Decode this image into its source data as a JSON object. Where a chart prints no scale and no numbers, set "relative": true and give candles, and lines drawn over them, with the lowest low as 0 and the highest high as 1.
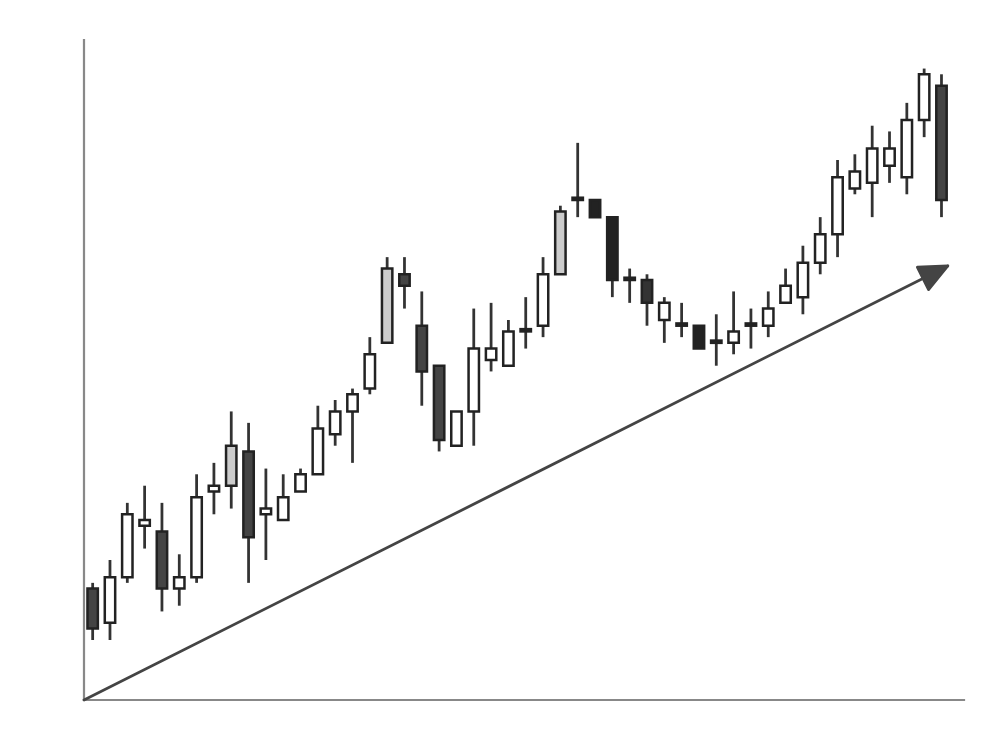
{
  "chart_data": {
    "type": "candlestick",
    "relative": true,
    "categories": [
      null,
      null,
      null,
      null,
      null,
      null,
      null,
      null,
      null,
      null,
      null,
      null,
      null,
      null,
      null,
      null,
      null,
      null,
      null,
      null,
      null,
      null,
      null,
      null,
      null,
      null,
      null,
      null,
      null,
      null,
      null,
      null,
      null,
      null,
      null,
      null,
      null,
      null,
      null,
      null,
      null,
      null,
      null,
      null,
      null,
      null,
      null,
      null,
      null,
      null
    ],
    "ohlc": [
      [
        0.09,
        0.1,
        0.0,
        0.02
      ],
      [
        0.03,
        0.14,
        0.0,
        0.11
      ],
      [
        0.11,
        0.24,
        0.1,
        0.22
      ],
      [
        0.2,
        0.27,
        0.16,
        0.21
      ],
      [
        0.19,
        0.24,
        0.05,
        0.09
      ],
      [
        0.09,
        0.15,
        0.06,
        0.11
      ],
      [
        0.11,
        0.29,
        0.1,
        0.25
      ],
      [
        0.26,
        0.31,
        0.22,
        0.27
      ],
      [
        0.27,
        0.4,
        0.23,
        0.34
      ],
      [
        0.33,
        0.38,
        0.1,
        0.18
      ],
      [
        0.22,
        0.3,
        0.14,
        0.23
      ],
      [
        0.21,
        0.29,
        0.21,
        0.25
      ],
      [
        0.26,
        0.3,
        0.26,
        0.29
      ],
      [
        0.29,
        0.41,
        0.29,
        0.37
      ],
      [
        0.36,
        0.42,
        0.34,
        0.4
      ],
      [
        0.4,
        0.44,
        0.31,
        0.43
      ],
      [
        0.44,
        0.53,
        0.43,
        0.5
      ],
      [
        0.52,
        0.67,
        0.52,
        0.65
      ],
      [
        0.64,
        0.67,
        0.58,
        0.62
      ],
      [
        0.55,
        0.61,
        0.41,
        0.47
      ],
      [
        0.48,
        0.48,
        0.33,
        0.35
      ],
      [
        0.34,
        0.4,
        0.34,
        0.4
      ],
      [
        0.4,
        0.58,
        0.34,
        0.51
      ],
      [
        0.49,
        0.59,
        0.47,
        0.51
      ],
      [
        0.48,
        0.56,
        0.48,
        0.54
      ],
      [
        0.54,
        0.6,
        0.51,
        0.54
      ],
      [
        0.55,
        0.67,
        0.53,
        0.64
      ],
      [
        0.64,
        0.76,
        0.64,
        0.75
      ],
      [
        0.77,
        0.87,
        0.74,
        0.77
      ],
      [
        0.77,
        0.77,
        0.74,
        0.74
      ],
      [
        0.74,
        0.74,
        0.6,
        0.63
      ],
      [
        0.63,
        0.65,
        0.59,
        0.63
      ],
      [
        0.63,
        0.64,
        0.55,
        0.59
      ],
      [
        0.56,
        0.6,
        0.52,
        0.59
      ],
      [
        0.55,
        0.59,
        0.53,
        0.55
      ],
      [
        0.55,
        0.55,
        0.51,
        0.51
      ],
      [
        0.52,
        0.57,
        0.48,
        0.52
      ],
      [
        0.52,
        0.61,
        0.5,
        0.54
      ],
      [
        0.55,
        0.58,
        0.51,
        0.55
      ],
      [
        0.55,
        0.61,
        0.53,
        0.58
      ],
      [
        0.59,
        0.65,
        0.59,
        0.62
      ],
      [
        0.6,
        0.69,
        0.57,
        0.66
      ],
      [
        0.66,
        0.74,
        0.64,
        0.71
      ],
      [
        0.71,
        0.84,
        0.67,
        0.81
      ],
      [
        0.79,
        0.85,
        0.78,
        0.82
      ],
      [
        0.8,
        0.9,
        0.74,
        0.86
      ],
      [
        0.83,
        0.89,
        0.8,
        0.86
      ],
      [
        0.81,
        0.94,
        0.78,
        0.91
      ],
      [
        0.91,
        1.0,
        0.88,
        0.99
      ],
      [
        0.97,
        0.99,
        0.74,
        0.77
      ]
    ],
    "colors": [
      "#444444",
      "#ffffff",
      "#ffffff",
      "#ffffff",
      "#444444",
      "#ffffff",
      "#ffffff",
      "#ffffff",
      "#cccccc",
      "#444444",
      "#ffffff",
      "#ffffff",
      "#ffffff",
      "#ffffff",
      "#ffffff",
      "#ffffff",
      "#ffffff",
      "#cccccc",
      "#444444",
      "#444444",
      "#444444",
      "#ffffff",
      "#ffffff",
      "#ffffff",
      "#ffffff",
      "#ffffff",
      "#ffffff",
      "#cccccc",
      "#ffffff",
      "#222222",
      "#222222",
      "#ffffff",
      "#333333",
      "#ffffff",
      "#ffffff",
      "#222222",
      "#ffffff",
      "#ffffff",
      "#ffffff",
      "#ffffff",
      "#ffffff",
      "#ffffff",
      "#ffffff",
      "#ffffff",
      "#ffffff",
      "#ffffff",
      "#ffffff",
      "#ffffff",
      "#ffffff",
      "#444444"
    ]
  }
}
